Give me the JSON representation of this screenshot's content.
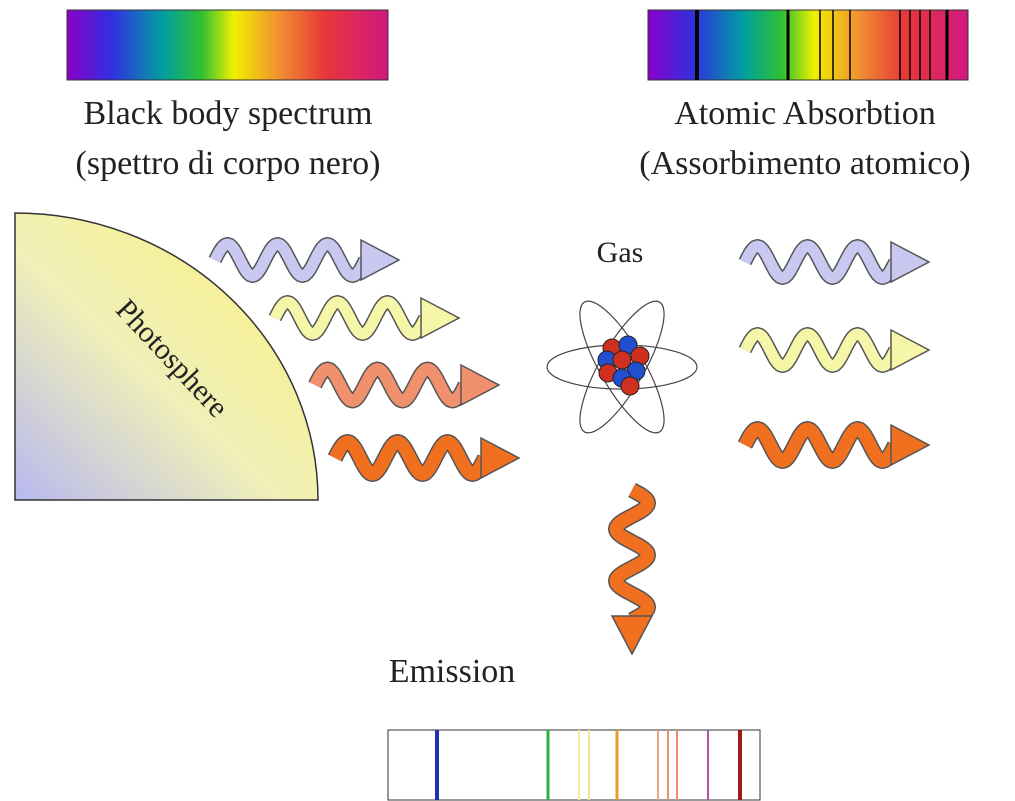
{
  "spectra": {
    "black_body": {
      "title": "Black body spectrum",
      "subtitle": "(spettro di corpo nero)"
    },
    "absorption": {
      "title": "Atomic Absorbtion",
      "subtitle": "(Assorbimento atomico)"
    }
  },
  "photosphere": "Photosphere",
  "gas": "Gas",
  "emission": "Emission"
}
